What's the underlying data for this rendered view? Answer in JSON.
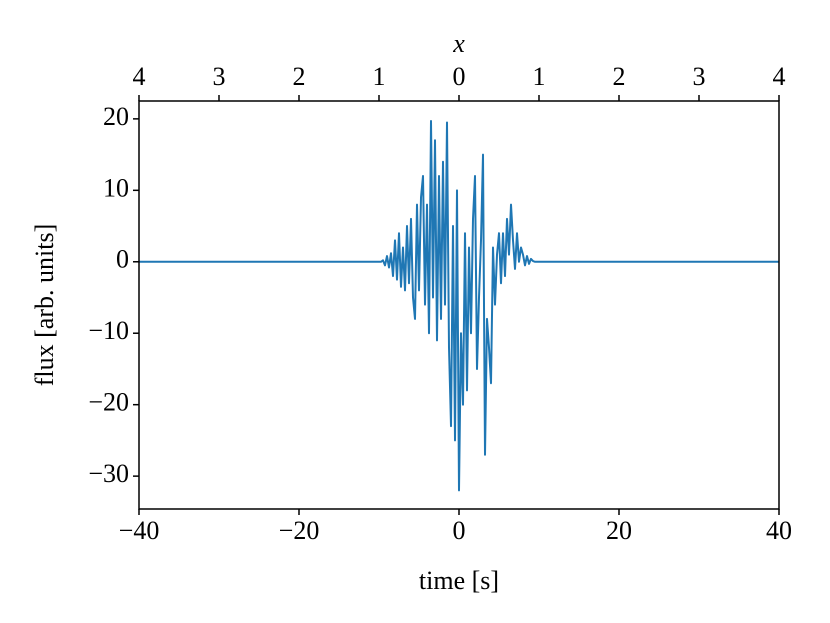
{
  "chart_data": {
    "type": "line",
    "x_label": "time [s]",
    "y_label": "flux [arb. units]",
    "x2_label": "x",
    "xlim": [
      -40,
      40
    ],
    "xticks": [
      {
        "value": -40,
        "label": "−40"
      },
      {
        "value": -20,
        "label": "−20"
      },
      0,
      20,
      40
    ],
    "ylim": [
      -34.6,
      22.5
    ],
    "yticks": [
      {
        "value": -30,
        "label": "−30"
      },
      {
        "value": -20,
        "label": "−20"
      },
      {
        "value": -10,
        "label": "−10"
      },
      0,
      10,
      20
    ],
    "x2lim": [
      -4,
      4
    ],
    "x2ticks": [
      {
        "value": -4,
        "label": "4"
      },
      {
        "value": -3,
        "label": "3"
      },
      {
        "value": -2,
        "label": "2"
      },
      {
        "value": -1,
        "label": "1"
      },
      0,
      1,
      2,
      3,
      4
    ],
    "grid": false,
    "series": [
      {
        "color": "#1f77b4",
        "x": [
          -40,
          -10,
          -9.75,
          -9.5,
          -9.25,
          -9,
          -8.75,
          -8.5,
          -8.25,
          -8,
          -7.75,
          -7.5,
          -7.25,
          -7,
          -6.75,
          -6.5,
          -6.25,
          -6,
          -5.75,
          -5.5,
          -5.25,
          -5,
          -4.75,
          -4.5,
          -4.25,
          -4,
          -3.75,
          -3.5,
          -3.25,
          -3,
          -2.75,
          -2.5,
          -2.25,
          -2,
          -1.75,
          -1.5,
          -1.25,
          -1,
          -0.75,
          -0.5,
          -0.25,
          0,
          0.25,
          0.5,
          0.75,
          1,
          1.25,
          1.5,
          1.75,
          2,
          2.25,
          2.5,
          2.75,
          3,
          3.25,
          3.5,
          3.75,
          4,
          4.25,
          4.5,
          4.75,
          5,
          5.25,
          5.5,
          5.75,
          6,
          6.25,
          6.5,
          6.75,
          7,
          7.25,
          7.5,
          7.75,
          8,
          8.25,
          8.5,
          8.75,
          9,
          9.25,
          9.5,
          9.75,
          10,
          40
        ],
        "values": [
          0,
          0,
          0,
          0.2,
          -0.5,
          0.8,
          -0.8,
          1.2,
          -2,
          3,
          -2.5,
          4,
          -3.5,
          2,
          -4,
          5,
          -3,
          6,
          -5,
          -8,
          8,
          -4,
          9,
          12,
          -6,
          8,
          -10,
          19.7,
          -5,
          17,
          -11,
          12,
          -8,
          14,
          -6,
          19.5,
          -12,
          -23,
          5,
          -25,
          10,
          -32,
          -10,
          -20,
          4,
          -18,
          2,
          -10,
          6,
          12,
          -15,
          -5,
          3,
          15,
          -27,
          -8,
          -12,
          -17,
          2,
          -6,
          1,
          4,
          -3,
          4,
          -2,
          6,
          1,
          8,
          3,
          -1,
          4,
          0,
          2,
          1,
          -0.5,
          0.8,
          -0.3,
          0.4,
          0.1,
          0,
          0,
          0,
          0
        ]
      }
    ]
  }
}
